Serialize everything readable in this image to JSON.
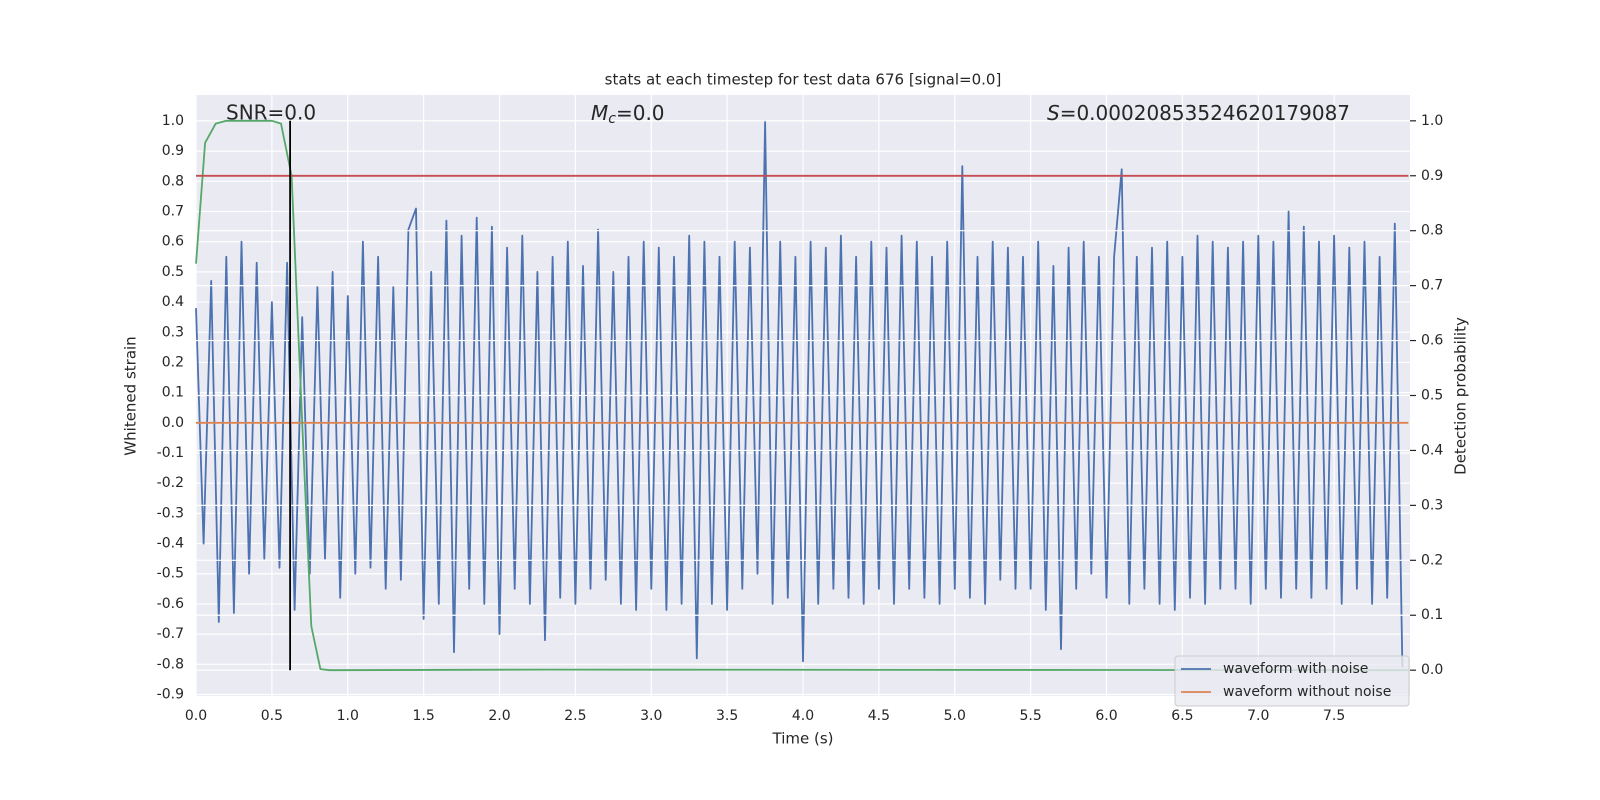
{
  "chart_data": {
    "type": "line",
    "title": "stats at each timestep for test data 676 [signal=0.0]",
    "xlabel": "Time (s)",
    "ylabel": "Whitened strain",
    "y2label": "Detection probability",
    "annotations": [
      {
        "text": "SNR=0.0"
      },
      {
        "symbol": "M",
        "subscript": "c",
        "text": "=0.0"
      },
      {
        "symbol": "S",
        "text": "=0.00020853524620179087"
      }
    ],
    "xlim": [
      0,
      8
    ],
    "ylim": [
      -0.905,
      1.086
    ],
    "y2lim": [
      -0.047,
      1.047
    ],
    "xticks": [
      {
        "value": 0,
        "label": "0.0"
      },
      0.5,
      {
        "value": 1,
        "label": "1.0"
      },
      1.5,
      {
        "value": 2,
        "label": "2.0"
      },
      2.5,
      {
        "value": 3,
        "label": "3.0"
      },
      3.5,
      {
        "value": 4,
        "label": "4.0"
      },
      4.5,
      {
        "value": 5,
        "label": "5.0"
      },
      5.5,
      {
        "value": 6,
        "label": "6.0"
      },
      6.5,
      {
        "value": 7,
        "label": "7.0"
      },
      7.5
    ],
    "yticks": [
      -0.9,
      -0.8,
      -0.7,
      -0.6,
      -0.5,
      -0.4,
      -0.3,
      -0.2,
      -0.1,
      {
        "value": 0,
        "label": "0.0"
      },
      0.1,
      0.2,
      0.3,
      0.4,
      0.5,
      0.6,
      0.7,
      0.8,
      0.9,
      {
        "value": 1,
        "label": "1.0"
      }
    ],
    "y2ticks": [
      {
        "value": 0,
        "label": "0.0"
      },
      0.1,
      0.2,
      0.3,
      0.4,
      0.5,
      0.6,
      0.7,
      0.8,
      0.9,
      {
        "value": 1,
        "label": "1.0"
      }
    ],
    "grid": true,
    "legend": "lower right",
    "series": [
      {
        "name": "waveform with noise",
        "color": "#4c72b0",
        "x": [
          0,
          0.05,
          0.1,
          0.15,
          0.2,
          0.25,
          0.3,
          0.35,
          0.4,
          0.45,
          0.5,
          0.55,
          0.6,
          0.65,
          0.7,
          0.75,
          0.8,
          0.85,
          0.9,
          0.95,
          1,
          1.05,
          1.1,
          1.15,
          1.2,
          1.25,
          1.3,
          1.35,
          1.4,
          1.45,
          1.5,
          1.55,
          1.6,
          1.65,
          1.7,
          1.75,
          1.8,
          1.85,
          1.9,
          1.95,
          2,
          2.05,
          2.1,
          2.15,
          2.2,
          2.25,
          2.3,
          2.35,
          2.4,
          2.45,
          2.5,
          2.55,
          2.6,
          2.65,
          2.7,
          2.75,
          2.8,
          2.85,
          2.9,
          2.95,
          3,
          3.05,
          3.1,
          3.15,
          3.2,
          3.25,
          3.3,
          3.35,
          3.4,
          3.45,
          3.5,
          3.55,
          3.6,
          3.65,
          3.7,
          3.75,
          3.8,
          3.85,
          3.9,
          3.95,
          4,
          4.05,
          4.1,
          4.15,
          4.2,
          4.25,
          4.3,
          4.35,
          4.4,
          4.45,
          4.5,
          4.55,
          4.6,
          4.65,
          4.7,
          4.75,
          4.8,
          4.85,
          4.9,
          4.95,
          5,
          5.05,
          5.1,
          5.15,
          5.2,
          5.25,
          5.3,
          5.35,
          5.4,
          5.45,
          5.5,
          5.55,
          5.6,
          5.65,
          5.7,
          5.75,
          5.8,
          5.85,
          5.9,
          5.95,
          6,
          6.05,
          6.1,
          6.15,
          6.2,
          6.25,
          6.3,
          6.35,
          6.4,
          6.45,
          6.5,
          6.55,
          6.6,
          6.65,
          6.7,
          6.75,
          6.8,
          6.85,
          6.9,
          6.95,
          7,
          7.05,
          7.1,
          7.15,
          7.2,
          7.25,
          7.3,
          7.35,
          7.4,
          7.45,
          7.5,
          7.55,
          7.6,
          7.65,
          7.7,
          7.75,
          7.8,
          7.85,
          7.9,
          7.95
        ],
        "values": [
          0.38,
          -0.4,
          0.47,
          -0.66,
          0.55,
          -0.63,
          0.6,
          -0.5,
          0.53,
          -0.45,
          0.4,
          -0.48,
          0.53,
          -0.62,
          0.35,
          -0.5,
          0.45,
          -0.45,
          0.5,
          -0.58,
          0.42,
          -0.5,
          0.6,
          -0.48,
          0.55,
          -0.55,
          0.45,
          -0.52,
          0.64,
          0.71,
          -0.65,
          0.5,
          -0.6,
          0.67,
          -0.76,
          0.62,
          -0.55,
          0.68,
          -0.6,
          0.65,
          -0.7,
          0.58,
          -0.55,
          0.62,
          -0.6,
          0.5,
          -0.72,
          0.55,
          -0.58,
          0.6,
          -0.6,
          0.52,
          -0.55,
          0.64,
          -0.52,
          0.5,
          -0.6,
          0.55,
          -0.62,
          0.6,
          -0.55,
          0.58,
          -0.62,
          0.55,
          -0.6,
          0.62,
          -0.78,
          0.6,
          -0.6,
          0.55,
          -0.62,
          0.6,
          -0.55,
          0.58,
          -0.5,
          1.0,
          -0.6,
          0.6,
          -0.58,
          0.55,
          -0.79,
          0.6,
          -0.6,
          0.58,
          -0.55,
          0.62,
          -0.58,
          0.55,
          -0.6,
          0.6,
          -0.55,
          0.58,
          -0.6,
          0.62,
          -0.55,
          0.6,
          -0.58,
          0.55,
          -0.6,
          0.6,
          -0.55,
          0.85,
          -0.58,
          0.55,
          -0.6,
          0.6,
          -0.52,
          0.58,
          -0.55,
          0.55,
          -0.55,
          0.6,
          -0.62,
          0.52,
          -0.75,
          0.58,
          -0.55,
          0.6,
          -0.5,
          0.55,
          -0.58,
          0.55,
          0.84,
          -0.6,
          0.55,
          -0.55,
          0.58,
          -0.6,
          0.6,
          -0.62,
          0.55,
          -0.58,
          0.62,
          -0.6,
          0.6,
          -0.55,
          0.58,
          -0.55,
          0.6,
          -0.6,
          0.62,
          -0.55,
          0.6,
          -0.58,
          0.7,
          -0.55,
          0.65,
          -0.58,
          0.6,
          -0.55,
          0.62,
          -0.6,
          0.58,
          -0.55,
          0.6,
          -0.6,
          0.55,
          -0.58,
          0.66,
          -0.81
        ]
      },
      {
        "name": "waveform without noise",
        "color": "#dd8452",
        "x": [
          0,
          7.99
        ],
        "values": [
          0,
          0
        ]
      },
      {
        "color": "#55a868",
        "axis": "y2",
        "x": [
          0,
          0.06,
          0.13,
          0.2,
          0.3,
          0.4,
          0.5,
          0.56,
          0.63,
          0.7,
          0.76,
          0.82,
          0.88,
          2.3,
          7.99
        ],
        "values": [
          0.74,
          0.96,
          0.995,
          1.0,
          1.0,
          1.0,
          1.0,
          0.995,
          0.9,
          0.45,
          0.08,
          0.002,
          0,
          0.001,
          0
        ]
      },
      {
        "color": "#c44e52",
        "axis": "y2",
        "x": [
          0,
          7.99
        ],
        "values": [
          0.9,
          0.9
        ]
      },
      {
        "color": "#000000",
        "axis": "y2",
        "x": [
          0.62,
          0.62
        ],
        "values": [
          0,
          1
        ]
      }
    ]
  }
}
